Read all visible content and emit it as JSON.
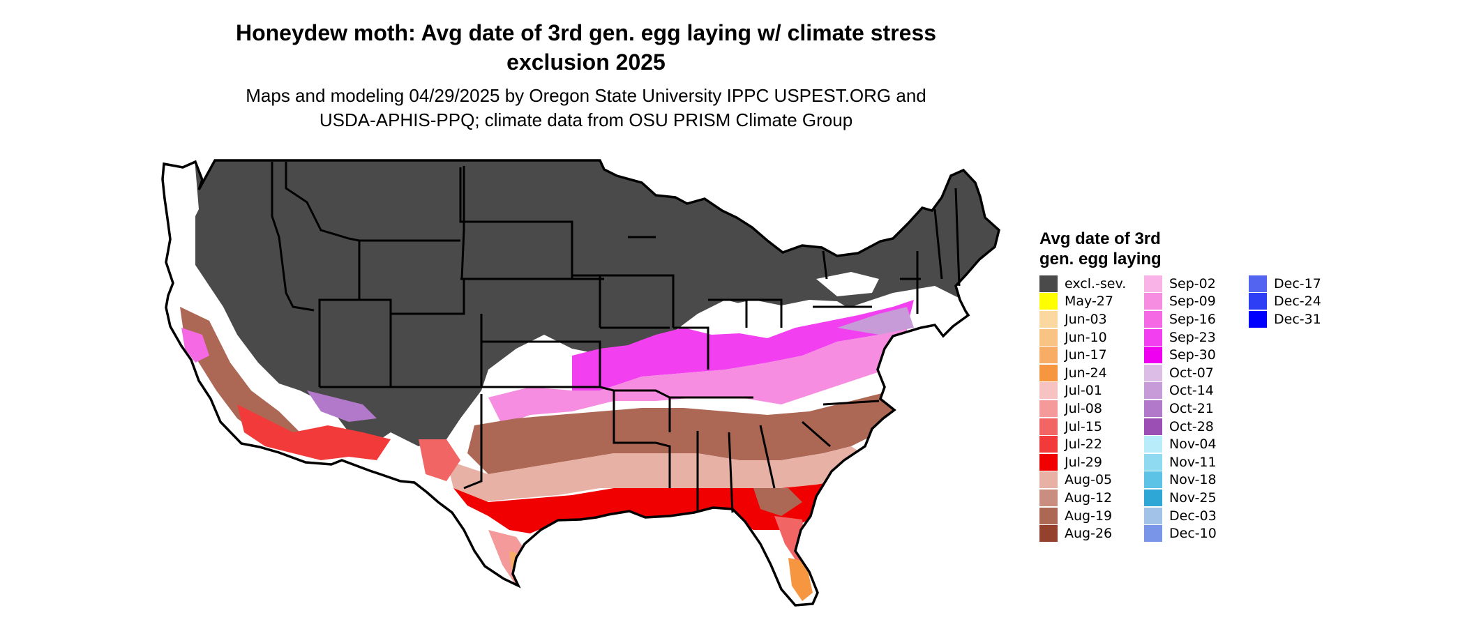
{
  "title_line1": "Honeydew moth: Avg date of 3rd gen. egg laying w/ climate stress",
  "title_line2": "exclusion 2025",
  "subtitle_line1": "Maps and modeling 04/29/2025 by Oregon State University IPPC USPEST.ORG and",
  "subtitle_line2": "USDA-APHIS-PPQ; climate data from OSU PRISM Climate Group",
  "legend": {
    "title_line1": "Avg date of 3rd",
    "title_line2": "gen. egg laying",
    "col1": [
      {
        "label": "excl.-sev.",
        "color": "#4a4a4a"
      },
      {
        "label": "May-27",
        "color": "#ffff00"
      },
      {
        "label": "Jun-03",
        "color": "#fad8a0"
      },
      {
        "label": "Jun-10",
        "color": "#f9c383"
      },
      {
        "label": "Jun-17",
        "color": "#f8ad66"
      },
      {
        "label": "Jun-24",
        "color": "#f79640"
      },
      {
        "label": "Jul-01",
        "color": "#f6c2c2"
      },
      {
        "label": "Jul-08",
        "color": "#f49a9a"
      },
      {
        "label": "Jul-15",
        "color": "#f26565"
      },
      {
        "label": "Jul-22",
        "color": "#f23a3a"
      },
      {
        "label": "Jul-29",
        "color": "#f00000"
      },
      {
        "label": "Aug-05",
        "color": "#e7b2a5"
      },
      {
        "label": "Aug-12",
        "color": "#c98e80"
      },
      {
        "label": "Aug-19",
        "color": "#ad6755"
      },
      {
        "label": "Aug-26",
        "color": "#94412e"
      }
    ],
    "col2": [
      {
        "label": "Sep-02",
        "color": "#f9b3e6"
      },
      {
        "label": "Sep-09",
        "color": "#f78de0"
      },
      {
        "label": "Sep-16",
        "color": "#f569e5"
      },
      {
        "label": "Sep-23",
        "color": "#f23ff0"
      },
      {
        "label": "Sep-30",
        "color": "#f000f0"
      },
      {
        "label": "Oct-07",
        "color": "#dcbde6"
      },
      {
        "label": "Oct-14",
        "color": "#c79ad8"
      },
      {
        "label": "Oct-21",
        "color": "#b279cb"
      },
      {
        "label": "Oct-28",
        "color": "#9b4fb5"
      },
      {
        "label": "Nov-04",
        "color": "#b9ecfa"
      },
      {
        "label": "Nov-11",
        "color": "#8fdaf1"
      },
      {
        "label": "Nov-18",
        "color": "#5dc3e6"
      },
      {
        "label": "Nov-25",
        "color": "#2ea6d6"
      },
      {
        "label": "Dec-03",
        "color": "#a2c2e8"
      },
      {
        "label": "Dec-10",
        "color": "#7895e8"
      }
    ],
    "col3": [
      {
        "label": "Dec-17",
        "color": "#5364f1"
      },
      {
        "label": "Dec-24",
        "color": "#2e3ef5"
      },
      {
        "label": "Dec-31",
        "color": "#0000ff"
      }
    ]
  },
  "colors": {
    "excluded": "#4a4a4a",
    "background": "#ffffff",
    "border": "#000000"
  }
}
